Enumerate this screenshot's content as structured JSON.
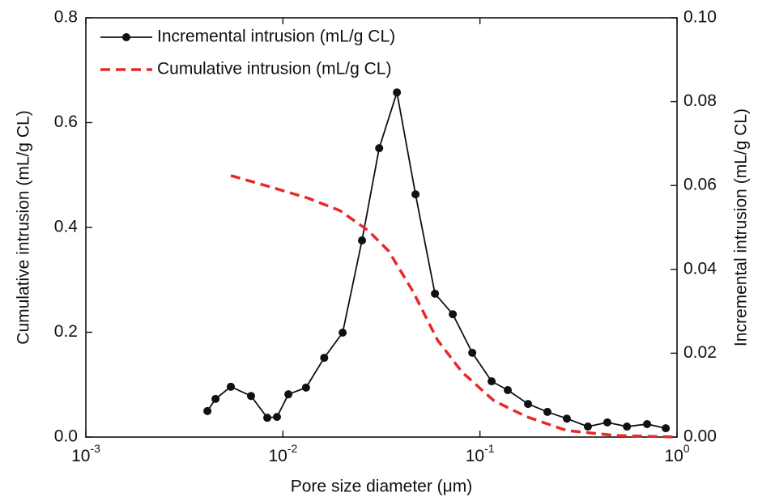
{
  "chart_data": {
    "type": "line",
    "xlabel": "Pore size diameter (μm)",
    "ylabel": "Cumulative intrusion (mL/g CL)",
    "y2label": "Incremental intrusion (mL/g CL)",
    "xscale": "log",
    "xlim": [
      0.001,
      1
    ],
    "xticks": [
      {
        "value": 0.001,
        "label": "10-3"
      },
      {
        "value": 0.01,
        "label": "10-2"
      },
      {
        "value": 0.1,
        "label": "10-1"
      },
      {
        "value": 1,
        "label": "100"
      }
    ],
    "ylim": [
      0,
      0.8
    ],
    "yticks": [
      {
        "value": 0,
        "label": "0.0"
      },
      0.2,
      0.4,
      0.6,
      0.8
    ],
    "y2lim": [
      0,
      0.1
    ],
    "y2ticks": [
      {
        "value": 0,
        "label": "0.00"
      },
      {
        "value": 0.02,
        "label": "0.02"
      },
      {
        "value": 0.04,
        "label": "0.04"
      },
      {
        "value": 0.06,
        "label": "0.06"
      },
      {
        "value": 0.08,
        "label": "0.08"
      },
      {
        "value": 0.1,
        "label": "0.10"
      }
    ],
    "legend": "upper left",
    "series": [
      {
        "name": "Incremental intrusion (mL/g CL)",
        "color": "#111111",
        "axis": "y2",
        "marker": true,
        "dashed": false,
        "x": [
          0.00414,
          0.00455,
          0.00544,
          0.00689,
          0.00833,
          0.00933,
          0.01066,
          0.0131,
          0.0162,
          0.0201,
          0.0252,
          0.0308,
          0.0379,
          0.0471,
          0.0591,
          0.0728,
          0.0914,
          0.1146,
          0.1384,
          0.1754,
          0.22,
          0.276,
          0.353,
          0.443,
          0.557,
          0.705,
          0.877
        ],
        "values": [
          0.0062,
          0.0091,
          0.012,
          0.0098,
          0.0046,
          0.0048,
          0.0102,
          0.0118,
          0.0189,
          0.0249,
          0.0469,
          0.0689,
          0.0822,
          0.0579,
          0.0342,
          0.0293,
          0.0201,
          0.0133,
          0.0112,
          0.0079,
          0.006,
          0.0044,
          0.0025,
          0.0035,
          0.0025,
          0.0031,
          0.0021
        ]
      },
      {
        "name": "Cumulative intrusion (mL/g CL)",
        "color": "#e8282a",
        "axis": "y",
        "marker": false,
        "dashed": true,
        "x": [
          0.00544,
          0.00833,
          0.0134,
          0.0195,
          0.0271,
          0.0344,
          0.0457,
          0.0609,
          0.0811,
          0.118,
          0.172,
          0.276,
          0.489,
          1.0
        ],
        "values": [
          0.499,
          0.479,
          0.456,
          0.432,
          0.394,
          0.355,
          0.278,
          0.185,
          0.124,
          0.069,
          0.039,
          0.0124,
          0.003,
          0
        ]
      }
    ]
  }
}
